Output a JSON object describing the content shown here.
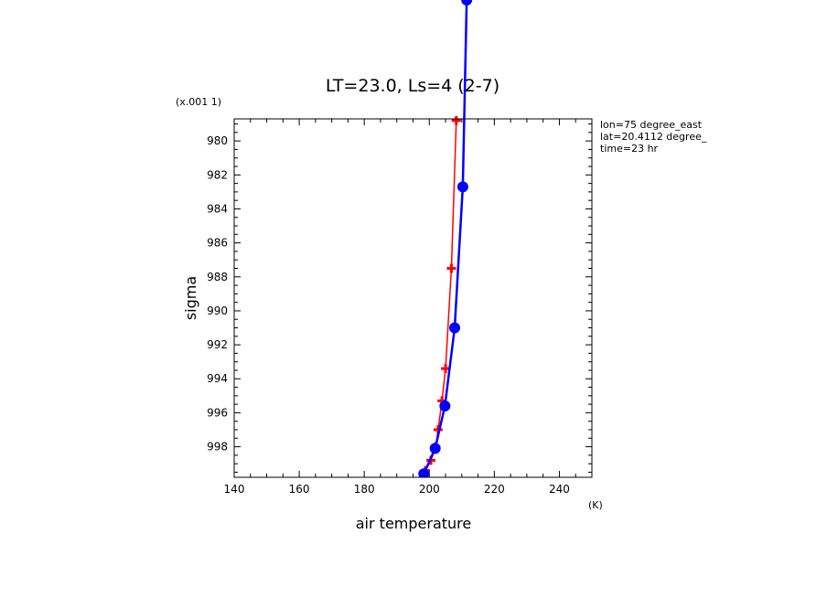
{
  "chart_data": {
    "type": "line",
    "title": "LT=23.0, Ls=4 (2-7)",
    "xlabel": "air temperature",
    "xunit": "(K)",
    "ylabel": "sigma",
    "yunit": "(x.001 1)",
    "xlim": [
      140,
      250
    ],
    "ylim": [
      999.8,
      978.7
    ],
    "x_ticks": [
      "140",
      "160",
      "180",
      "200",
      "220",
      "240"
    ],
    "y_ticks": [
      "980",
      "982",
      "984",
      "986",
      "988",
      "990",
      "992",
      "994",
      "996",
      "998"
    ],
    "annotations": [
      "lon=75 degree_east",
      "lat=20.4112 degree_",
      "time=23 hr"
    ],
    "grid": false,
    "series": [
      {
        "color": "#ff0000",
        "marker": "plus",
        "points": [
          {
            "x": 197.5,
            "y": 999.9
          },
          {
            "x": 198.8,
            "y": 999.4
          },
          {
            "x": 200.5,
            "y": 998.8
          },
          {
            "x": 202.0,
            "y": 998.0
          },
          {
            "x": 202.7,
            "y": 997.0
          },
          {
            "x": 203.9,
            "y": 995.3
          },
          {
            "x": 205.0,
            "y": 993.4
          },
          {
            "x": 206.8,
            "y": 987.5
          },
          {
            "x": 208.3,
            "y": 978.8
          }
        ]
      },
      {
        "color": "#0000ff",
        "marker": "circle",
        "points": [
          {
            "x": 198.3,
            "y": 999.6
          },
          {
            "x": 201.8,
            "y": 998.1
          },
          {
            "x": 204.8,
            "y": 995.6
          },
          {
            "x": 207.8,
            "y": 991.0
          },
          {
            "x": 210.3,
            "y": 982.7
          },
          {
            "x": 211.5,
            "y": 971.7
          }
        ]
      }
    ]
  }
}
